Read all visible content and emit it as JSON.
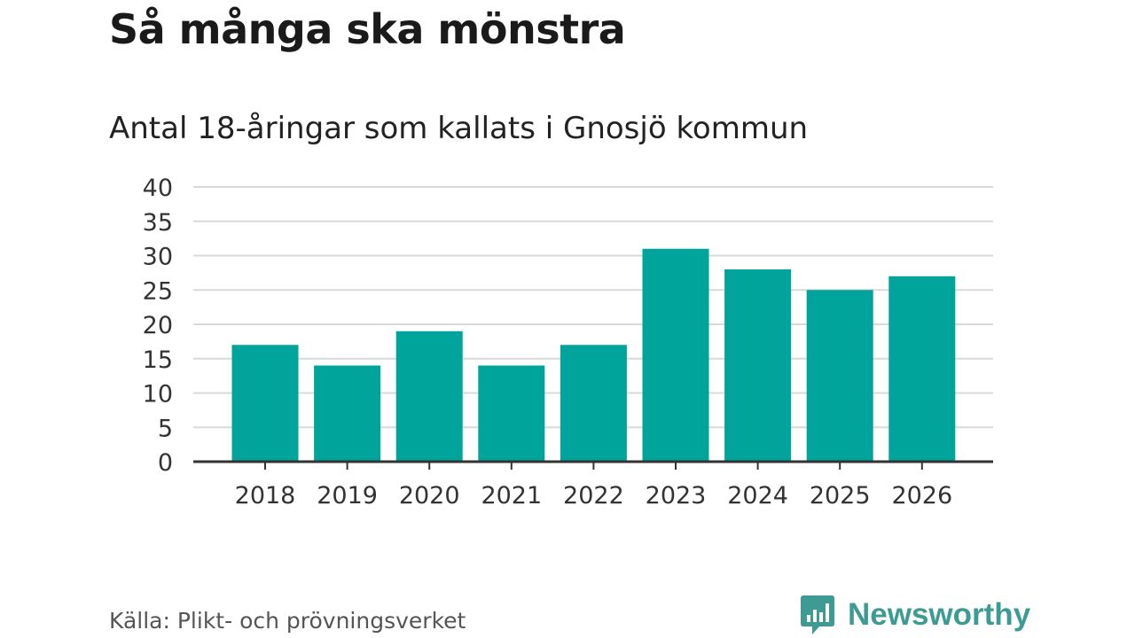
{
  "header": {
    "title": "Så många ska mönstra",
    "subtitle": "Antal 18-åringar som kallats i Gnosjö kommun"
  },
  "footer": {
    "source": "Källa: Plikt- och prövningsverket",
    "brand": "Newsworthy"
  },
  "colors": {
    "bar": "#00a49a",
    "grid": "#d9d9d9",
    "axis": "#333333",
    "brand": "#3e9b94"
  },
  "chart_data": {
    "type": "bar",
    "categories": [
      "2018",
      "2019",
      "2020",
      "2021",
      "2022",
      "2023",
      "2024",
      "2025",
      "2026"
    ],
    "values": [
      17,
      14,
      19,
      14,
      17,
      31,
      28,
      25,
      27
    ],
    "yticks": [
      0,
      5,
      10,
      15,
      20,
      25,
      30,
      35,
      40
    ],
    "ylim": [
      0,
      40
    ],
    "grid": true,
    "legend": "none"
  }
}
